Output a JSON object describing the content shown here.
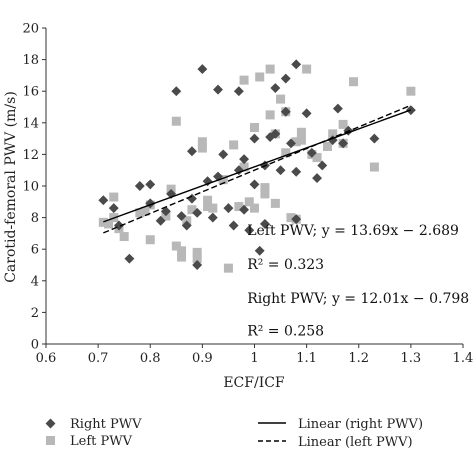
{
  "chart_data": {
    "type": "scatter",
    "xlabel": "ECF/ICF",
    "ylabel": "Carotid-femoral PWV (m/s)",
    "xlim": [
      0.6,
      1.4
    ],
    "ylim": [
      0,
      20
    ],
    "xticks": [
      "0.6",
      "0.7",
      "0.8",
      "0.9",
      "1",
      "1.1",
      "1.2",
      "1.3",
      "1.4"
    ],
    "yticks": [
      "0",
      "2",
      "4",
      "6",
      "8",
      "10",
      "12",
      "14",
      "16",
      "18",
      "20"
    ],
    "grid": false,
    "legend_position": "bottom",
    "series": [
      {
        "name": "Right PWV",
        "marker": "diamond",
        "color": "#4a4a4a",
        "points": [
          [
            0.71,
            9.1
          ],
          [
            0.73,
            8.6
          ],
          [
            0.74,
            7.5
          ],
          [
            0.76,
            5.4
          ],
          [
            0.78,
            10.0
          ],
          [
            0.8,
            10.1
          ],
          [
            0.8,
            8.9
          ],
          [
            0.82,
            7.8
          ],
          [
            0.83,
            8.4
          ],
          [
            0.84,
            9.5
          ],
          [
            0.85,
            16.0
          ],
          [
            0.86,
            8.1
          ],
          [
            0.87,
            7.5
          ],
          [
            0.88,
            9.2
          ],
          [
            0.88,
            12.2
          ],
          [
            0.89,
            5.0
          ],
          [
            0.89,
            8.3
          ],
          [
            0.9,
            17.4
          ],
          [
            0.91,
            10.3
          ],
          [
            0.92,
            8.0
          ],
          [
            0.93,
            16.1
          ],
          [
            0.93,
            10.6
          ],
          [
            0.94,
            12.0
          ],
          [
            0.95,
            8.6
          ],
          [
            0.96,
            7.5
          ],
          [
            0.97,
            11.0
          ],
          [
            0.97,
            16.0
          ],
          [
            0.98,
            11.7
          ],
          [
            0.98,
            8.5
          ],
          [
            0.99,
            7.2
          ],
          [
            1.0,
            13.0
          ],
          [
            1.0,
            10.1
          ],
          [
            1.01,
            5.9
          ],
          [
            1.02,
            7.6
          ],
          [
            1.02,
            11.3
          ],
          [
            1.03,
            13.1
          ],
          [
            1.04,
            16.2
          ],
          [
            1.04,
            13.3
          ],
          [
            1.05,
            11.0
          ],
          [
            1.06,
            16.8
          ],
          [
            1.06,
            14.7
          ],
          [
            1.07,
            12.7
          ],
          [
            1.08,
            17.7
          ],
          [
            1.08,
            10.9
          ],
          [
            1.08,
            7.9
          ],
          [
            1.1,
            14.6
          ],
          [
            1.11,
            12.1
          ],
          [
            1.12,
            10.5
          ],
          [
            1.13,
            11.3
          ],
          [
            1.15,
            12.9
          ],
          [
            1.16,
            14.9
          ],
          [
            1.17,
            12.7
          ],
          [
            1.18,
            13.5
          ],
          [
            1.23,
            13.0
          ],
          [
            1.3,
            14.8
          ]
        ]
      },
      {
        "name": "Left PWV",
        "marker": "square",
        "color": "#b8b8b8",
        "points": [
          [
            0.71,
            7.7
          ],
          [
            0.72,
            7.6
          ],
          [
            0.73,
            9.3
          ],
          [
            0.73,
            8.0
          ],
          [
            0.74,
            7.3
          ],
          [
            0.75,
            6.8
          ],
          [
            0.78,
            8.3
          ],
          [
            0.79,
            8.4
          ],
          [
            0.8,
            6.6
          ],
          [
            0.8,
            8.8
          ],
          [
            0.83,
            8.1
          ],
          [
            0.84,
            9.8
          ],
          [
            0.85,
            14.1
          ],
          [
            0.85,
            6.2
          ],
          [
            0.86,
            5.9
          ],
          [
            0.86,
            5.5
          ],
          [
            0.87,
            7.8
          ],
          [
            0.88,
            8.5
          ],
          [
            0.89,
            5.4
          ],
          [
            0.89,
            5.8
          ],
          [
            0.9,
            12.4
          ],
          [
            0.9,
            12.8
          ],
          [
            0.91,
            9.1
          ],
          [
            0.91,
            8.7
          ],
          [
            0.92,
            8.6
          ],
          [
            0.94,
            10.4
          ],
          [
            0.95,
            4.8
          ],
          [
            0.96,
            12.6
          ],
          [
            0.97,
            8.7
          ],
          [
            0.98,
            16.7
          ],
          [
            0.98,
            11.2
          ],
          [
            0.99,
            9.0
          ],
          [
            1.0,
            8.6
          ],
          [
            1.0,
            13.7
          ],
          [
            1.01,
            16.9
          ],
          [
            1.02,
            9.5
          ],
          [
            1.02,
            9.9
          ],
          [
            1.03,
            17.4
          ],
          [
            1.03,
            14.5
          ],
          [
            1.04,
            8.9
          ],
          [
            1.04,
            13.3
          ],
          [
            1.05,
            15.5
          ],
          [
            1.06,
            12.1
          ],
          [
            1.06,
            14.7
          ],
          [
            1.07,
            8.0
          ],
          [
            1.08,
            7.9
          ],
          [
            1.08,
            12.8
          ],
          [
            1.09,
            12.9
          ],
          [
            1.09,
            13.4
          ],
          [
            1.1,
            17.4
          ],
          [
            1.11,
            12.0
          ],
          [
            1.12,
            11.8
          ],
          [
            1.14,
            12.5
          ],
          [
            1.15,
            13.3
          ],
          [
            1.17,
            12.7
          ],
          [
            1.17,
            13.9
          ],
          [
            1.19,
            16.6
          ],
          [
            1.23,
            11.2
          ],
          [
            1.3,
            16.0
          ]
        ]
      }
    ],
    "trendlines": [
      {
        "name": "Linear (right PWV)",
        "style": "solid",
        "slope": 12.01,
        "intercept": -0.798,
        "x_range": [
          0.71,
          1.3
        ]
      },
      {
        "name": "Linear (left PWV)",
        "style": "dashed",
        "slope": 13.69,
        "intercept": -2.689,
        "x_range": [
          0.71,
          1.3
        ]
      }
    ],
    "annotations": [
      {
        "x": 0.986,
        "y": 6.9,
        "text": "Left PWV; y = 13.69x − 2.689"
      },
      {
        "x": 0.986,
        "y": 4.75,
        "text": "R² = 0.323"
      },
      {
        "x": 0.986,
        "y": 2.6,
        "text": "Right PWV; y = 12.01x − 0.798"
      },
      {
        "x": 0.986,
        "y": 0.55,
        "text": "R² = 0.258"
      }
    ]
  }
}
